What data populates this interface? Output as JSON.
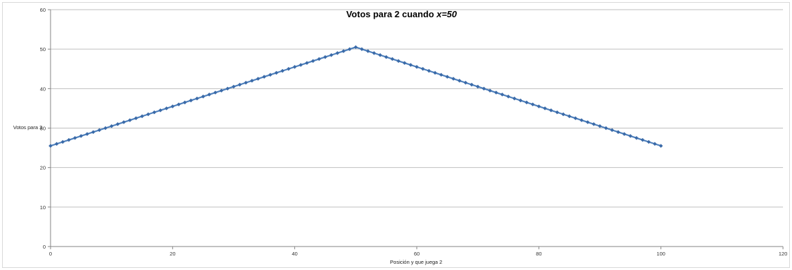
{
  "chart_data": {
    "type": "line",
    "title_main": "Votos para 2 cuando ",
    "title_var": "x=50",
    "xlabel": "Posición y que juega 2",
    "ylabel": "Votos para 2",
    "xlim": [
      0,
      120
    ],
    "ylim": [
      0,
      60
    ],
    "xticks": [
      0,
      20,
      40,
      60,
      80,
      100,
      120
    ],
    "yticks": [
      0,
      10,
      20,
      30,
      40,
      50,
      60
    ],
    "grid": "horizontal",
    "series_color": "#4f81bd",
    "marker_color": "#3a6aa8",
    "x": [
      0,
      1,
      2,
      3,
      4,
      5,
      6,
      7,
      8,
      9,
      10,
      11,
      12,
      13,
      14,
      15,
      16,
      17,
      18,
      19,
      20,
      21,
      22,
      23,
      24,
      25,
      26,
      27,
      28,
      29,
      30,
      31,
      32,
      33,
      34,
      35,
      36,
      37,
      38,
      39,
      40,
      41,
      42,
      43,
      44,
      45,
      46,
      47,
      48,
      49,
      50,
      51,
      52,
      53,
      54,
      55,
      56,
      57,
      58,
      59,
      60,
      61,
      62,
      63,
      64,
      65,
      66,
      67,
      68,
      69,
      70,
      71,
      72,
      73,
      74,
      75,
      76,
      77,
      78,
      79,
      80,
      81,
      82,
      83,
      84,
      85,
      86,
      87,
      88,
      89,
      90,
      91,
      92,
      93,
      94,
      95,
      96,
      97,
      98,
      99,
      100
    ],
    "y": [
      25.5,
      26,
      26.5,
      27,
      27.5,
      28,
      28.5,
      29,
      29.5,
      30,
      30.5,
      31,
      31.5,
      32,
      32.5,
      33,
      33.5,
      34,
      34.5,
      35,
      35.5,
      36,
      36.5,
      37,
      37.5,
      38,
      38.5,
      39,
      39.5,
      40,
      40.5,
      41,
      41.5,
      42,
      42.5,
      43,
      43.5,
      44,
      44.5,
      45,
      45.5,
      46,
      46.5,
      47,
      47.5,
      48,
      48.5,
      49,
      49.5,
      50,
      50.5,
      50,
      49.5,
      49,
      48.5,
      48,
      47.5,
      47,
      46.5,
      46,
      45.5,
      45,
      44.5,
      44,
      43.5,
      43,
      42.5,
      42,
      41.5,
      41,
      40.5,
      40,
      39.5,
      39,
      38.5,
      38,
      37.5,
      37,
      36.5,
      36,
      35.5,
      35,
      34.5,
      34,
      33.5,
      33,
      32.5,
      32,
      31.5,
      31,
      30.5,
      30,
      29.5,
      29,
      28.5,
      28,
      27.5,
      27,
      26.5,
      26,
      25.5
    ]
  }
}
